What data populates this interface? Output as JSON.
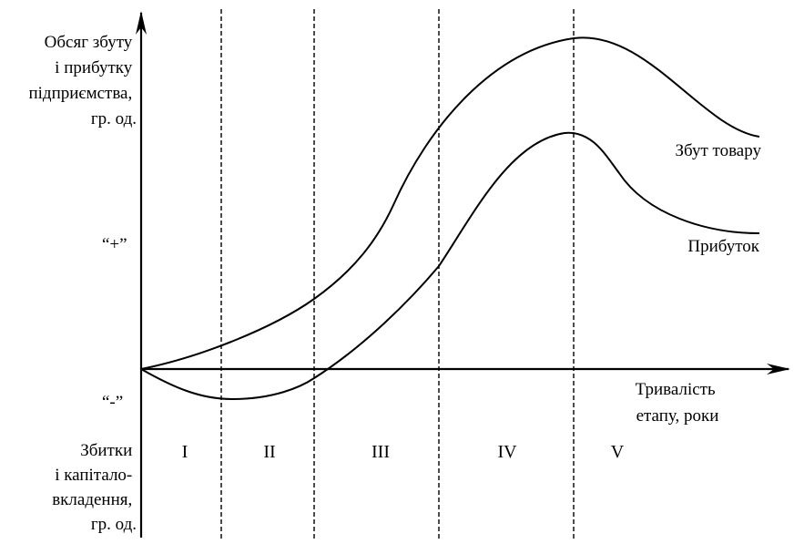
{
  "y_axis_label": [
    "Обсяг збуту",
    "і прибутку",
    "підприємства,",
    "гр. од."
  ],
  "plus_label": "“+”",
  "minus_label": "“-”",
  "x_axis_label": [
    "Тривалість",
    "етапу, роки"
  ],
  "loss_label": [
    "Збитки",
    "і капітало-",
    "вкладення,",
    "гр. од."
  ],
  "stages": [
    "I",
    "II",
    "III",
    "IV",
    "V"
  ],
  "curves": {
    "sales": "Збут товару",
    "profit": "Прибуток"
  }
}
